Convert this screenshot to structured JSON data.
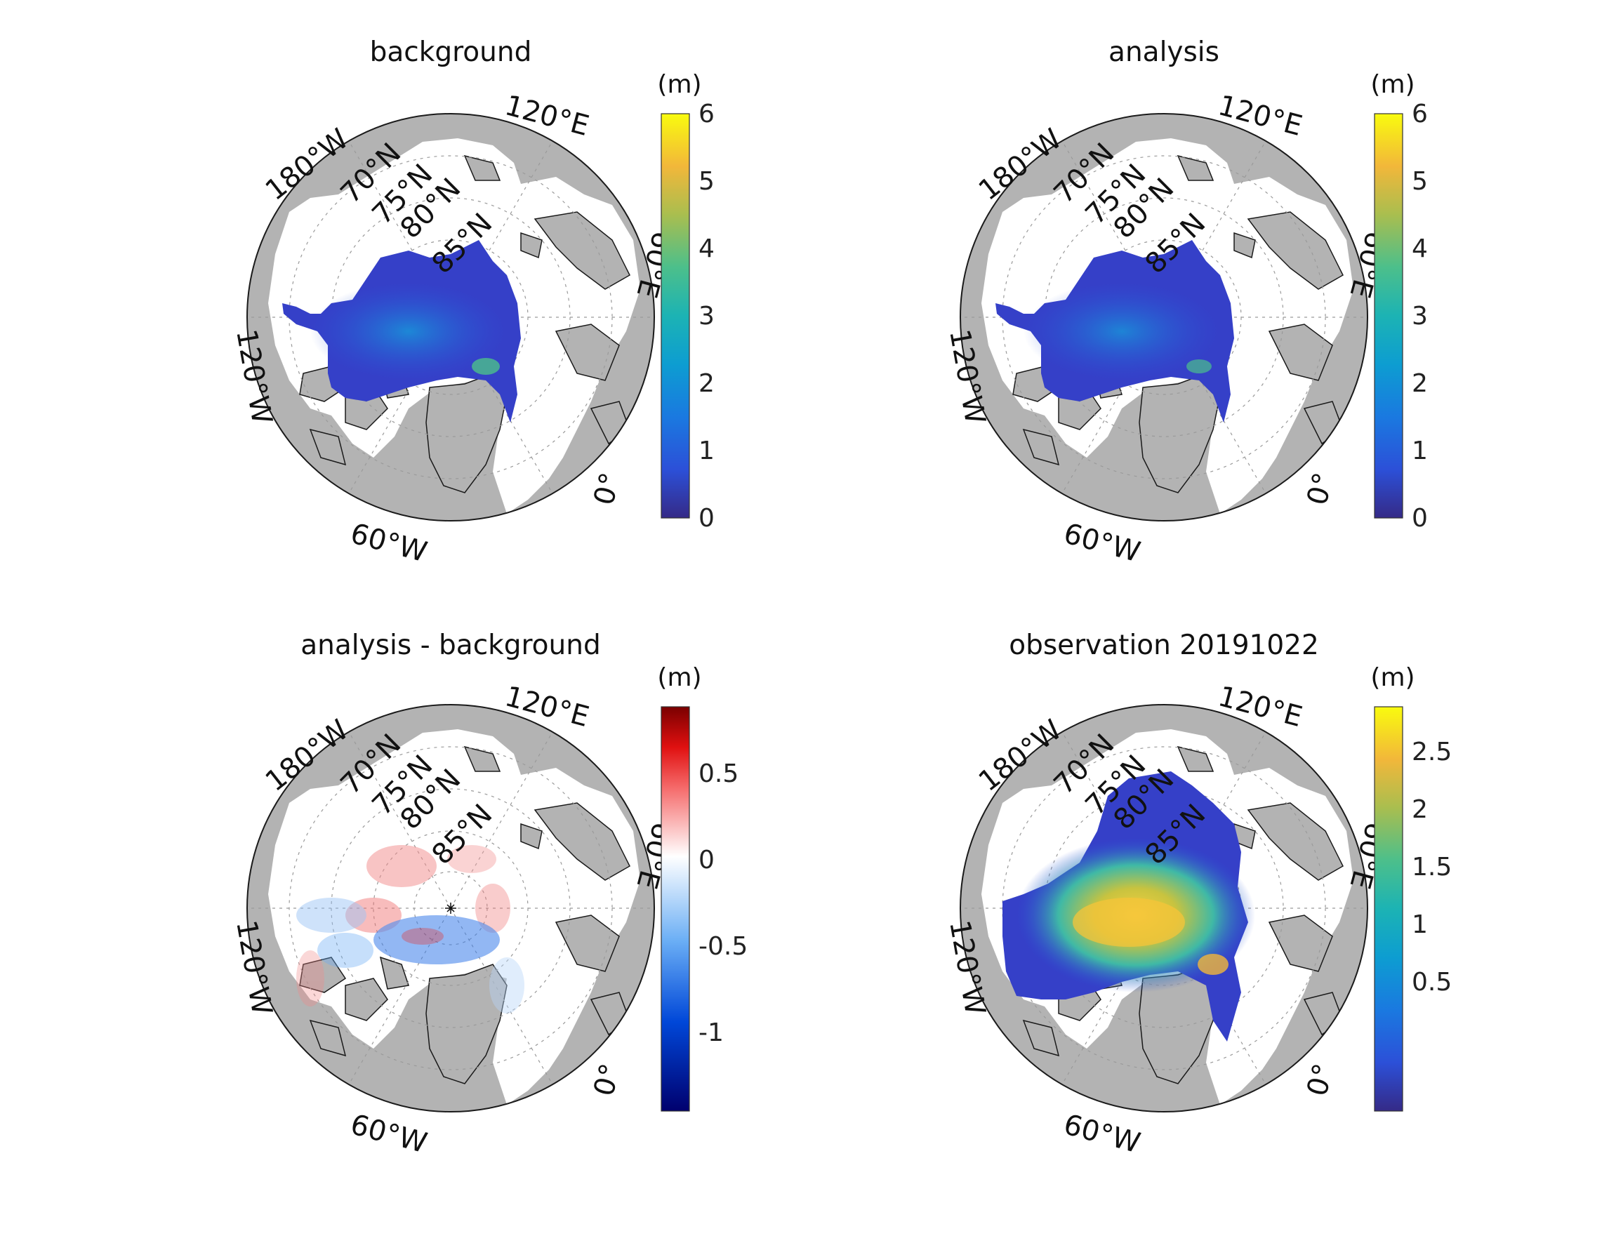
{
  "panels": [
    {
      "title": "background",
      "units": "(m)",
      "colormap": "parula",
      "colorbar": {
        "ticks": [
          "6",
          "5",
          "4",
          "3",
          "2",
          "1",
          "0"
        ]
      },
      "labels": {
        "e120": "120°E",
        "w180": "180°W",
        "n70": "70°N",
        "n75": "75°N",
        "n80": "80°N",
        "n85": "85°N",
        "e60": "60°E",
        "w120": "120°W",
        "zero": "0°",
        "w60": "60°W"
      }
    },
    {
      "title": "analysis",
      "units": "(m)",
      "colormap": "parula",
      "colorbar": {
        "ticks": [
          "6",
          "5",
          "4",
          "3",
          "2",
          "1",
          "0"
        ]
      },
      "labels": {
        "e120": "120°E",
        "w180": "180°W",
        "n70": "70°N",
        "n75": "75°N",
        "n80": "80°N",
        "n85": "85°N",
        "e60": "60°E",
        "w120": "120°W",
        "zero": "0°",
        "w60": "60°W"
      }
    },
    {
      "title": "analysis - background",
      "units": "(m)",
      "colormap": "diverging-blue-white-red",
      "colorbar": {
        "ticks": [
          "0.5",
          "0",
          "-0.5",
          "-1"
        ]
      },
      "labels": {
        "e120": "120°E",
        "w180": "180°W",
        "n70": "70°N",
        "n75": "75°N",
        "n80": "80°N",
        "n85": "85°N",
        "e60": "60°E",
        "w120": "120°W",
        "zero": "0°",
        "w60": "60°W"
      }
    },
    {
      "title": "observation 20191022",
      "units": "(m)",
      "colormap": "parula",
      "colorbar": {
        "ticks": [
          "2.5",
          "2",
          "1.5",
          "1",
          "0.5"
        ]
      },
      "labels": {
        "e120": "120°E",
        "w180": "180°W",
        "n70": "70°N",
        "n75": "75°N",
        "n80": "80°N",
        "n85": "85°N",
        "e60": "60°E",
        "w120": "120°W",
        "zero": "0°",
        "w60": "60°W"
      }
    }
  ],
  "colors": {
    "land": "#b3b3b3",
    "ocean": "#ffffff",
    "outline": "#1a1a1a"
  }
}
